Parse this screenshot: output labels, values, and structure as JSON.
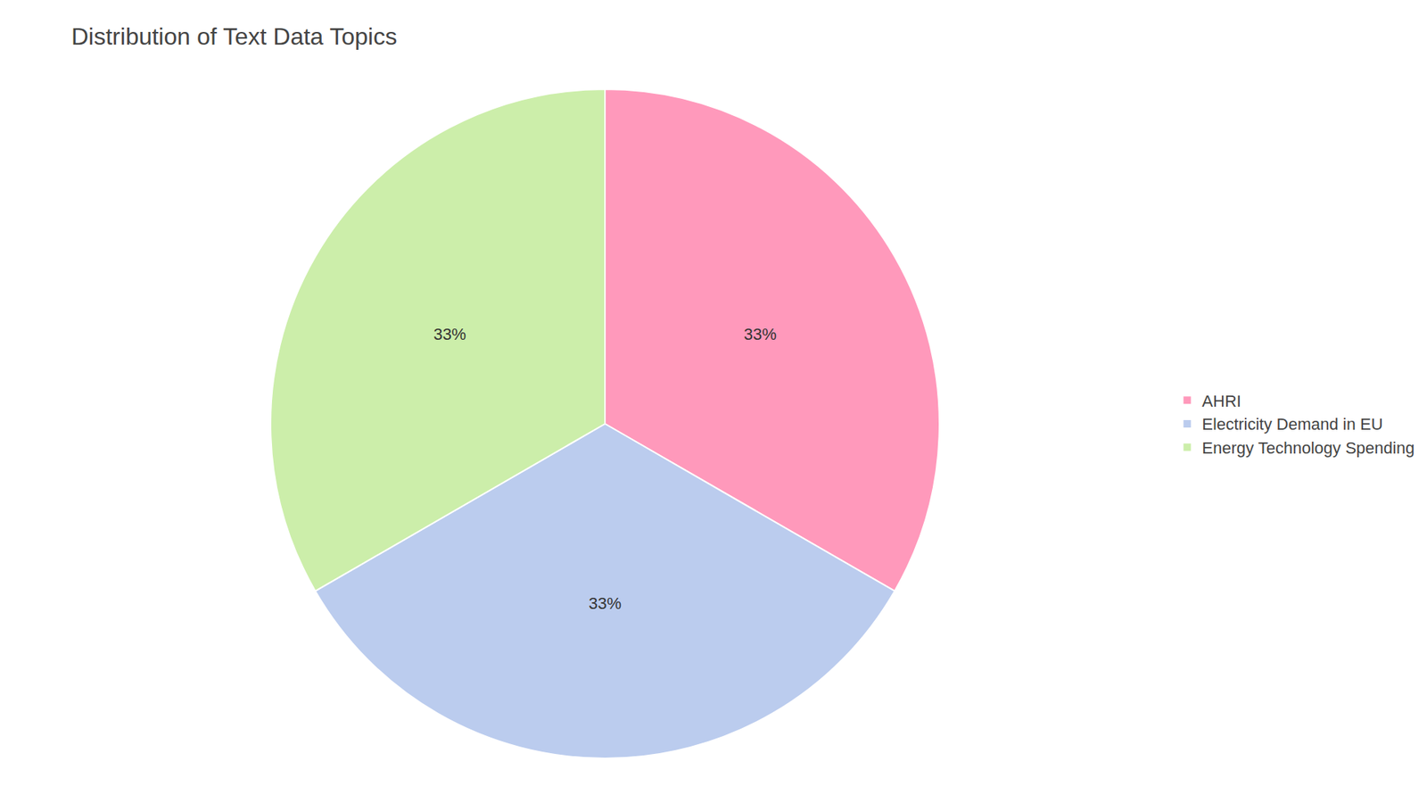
{
  "chart_data": {
    "type": "pie",
    "title": "Distribution of Text Data Topics",
    "categories": [
      "AHRI",
      "Electricity Demand in EU",
      "Energy Technology Spending"
    ],
    "values": [
      33.33,
      33.34,
      33.33
    ],
    "value_labels": [
      "33%",
      "33%",
      "33%"
    ],
    "data_labels": true,
    "colors": [
      "#FF99BB",
      "#BBCCEE",
      "#CCEEAA"
    ],
    "legend": "right"
  }
}
